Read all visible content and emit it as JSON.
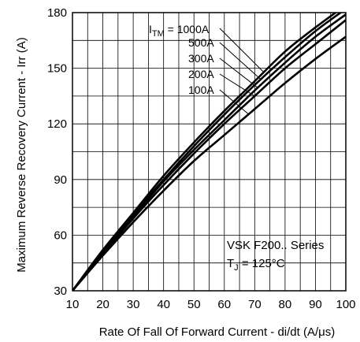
{
  "chart_data": {
    "type": "line",
    "xlabel": "Rate Of Fall Of Forward Current - di/dt (A/μs)",
    "ylabel": "Maximum Reverse Recovery Current - Irr (A)",
    "xlim": [
      10,
      100
    ],
    "ylim": [
      30,
      180
    ],
    "x_ticks": [
      10,
      20,
      30,
      40,
      50,
      60,
      70,
      80,
      90,
      100
    ],
    "y_ticks": [
      30,
      60,
      90,
      120,
      150,
      180
    ],
    "grid": true,
    "legend_title_prefix": "I",
    "legend_title_sub": "TM",
    "legend_title_suffix": " = 1000A",
    "device_label": "VSK F200.. Series",
    "temp_prefix": "T",
    "temp_sub": "J",
    "temp_suffix": " = 125°C",
    "series": [
      {
        "name": "1000A",
        "label": "",
        "x": [
          10,
          20,
          30,
          40,
          50,
          60,
          70,
          80,
          90,
          100
        ],
        "y": [
          30,
          52,
          72,
          92,
          110,
          127,
          143,
          159,
          172,
          184
        ]
      },
      {
        "name": "500A",
        "label": "500A",
        "x": [
          10,
          20,
          30,
          40,
          50,
          60,
          70,
          80,
          90,
          100
        ],
        "y": [
          30,
          51,
          71,
          90,
          108,
          125,
          141,
          156,
          170,
          182
        ]
      },
      {
        "name": "300A",
        "label": "300A",
        "x": [
          10,
          20,
          30,
          40,
          50,
          60,
          70,
          80,
          90,
          100
        ],
        "y": [
          30,
          51,
          70,
          89,
          106,
          122,
          138,
          153,
          167,
          179
        ]
      },
      {
        "name": "200A",
        "label": "200A",
        "x": [
          10,
          20,
          30,
          40,
          50,
          60,
          70,
          80,
          90,
          100
        ],
        "y": [
          30,
          50,
          69,
          87,
          104,
          120,
          135,
          150,
          163,
          176
        ]
      },
      {
        "name": "100A",
        "label": "100A",
        "x": [
          10,
          20,
          30,
          40,
          50,
          60,
          70,
          80,
          90,
          100
        ],
        "y": [
          30,
          49,
          67,
          84,
          100,
          114,
          128,
          142,
          155,
          167
        ]
      }
    ]
  }
}
